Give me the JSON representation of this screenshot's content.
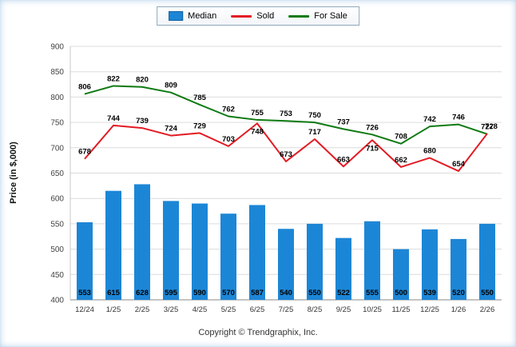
{
  "legend": {
    "items": [
      {
        "label": "Median",
        "color": "#1c86d6",
        "type": "bar"
      },
      {
        "label": "Sold",
        "color": "#e31b23",
        "type": "line"
      },
      {
        "label": "For Sale",
        "color": "#0e7a12",
        "type": "line"
      }
    ]
  },
  "axis": {
    "y_title": "Price (in $,000)",
    "y_min": 400,
    "y_max": 900,
    "y_step": 50
  },
  "footer": {
    "copyright": "Copyright © Trendgraphix, Inc."
  },
  "chart_data": {
    "type": "bar",
    "title": "",
    "xlabel": "",
    "ylabel": "Price (in $,000)",
    "ylim": [
      400,
      900
    ],
    "grid": true,
    "legend_position": "top-center",
    "categories": [
      "12/24",
      "1/25",
      "2/25",
      "3/25",
      "4/25",
      "5/25",
      "6/25",
      "7/25",
      "8/25",
      "9/25",
      "10/25",
      "11/25",
      "12/25",
      "1/26",
      "2/26"
    ],
    "series": [
      {
        "name": "Median",
        "type": "bar",
        "color": "#1c86d6",
        "values": [
          553,
          615,
          628,
          595,
          590,
          570,
          587,
          540,
          550,
          522,
          555,
          500,
          539,
          520,
          550
        ]
      },
      {
        "name": "Sold",
        "type": "line",
        "color": "#e31b23",
        "values": [
          678,
          744,
          739,
          724,
          729,
          703,
          748,
          673,
          717,
          663,
          715,
          662,
          680,
          654,
          728
        ]
      },
      {
        "name": "For Sale",
        "type": "line",
        "color": "#0e7a12",
        "values": [
          806,
          822,
          820,
          809,
          785,
          762,
          755,
          753,
          750,
          737,
          726,
          708,
          742,
          746,
          727
        ]
      }
    ]
  }
}
